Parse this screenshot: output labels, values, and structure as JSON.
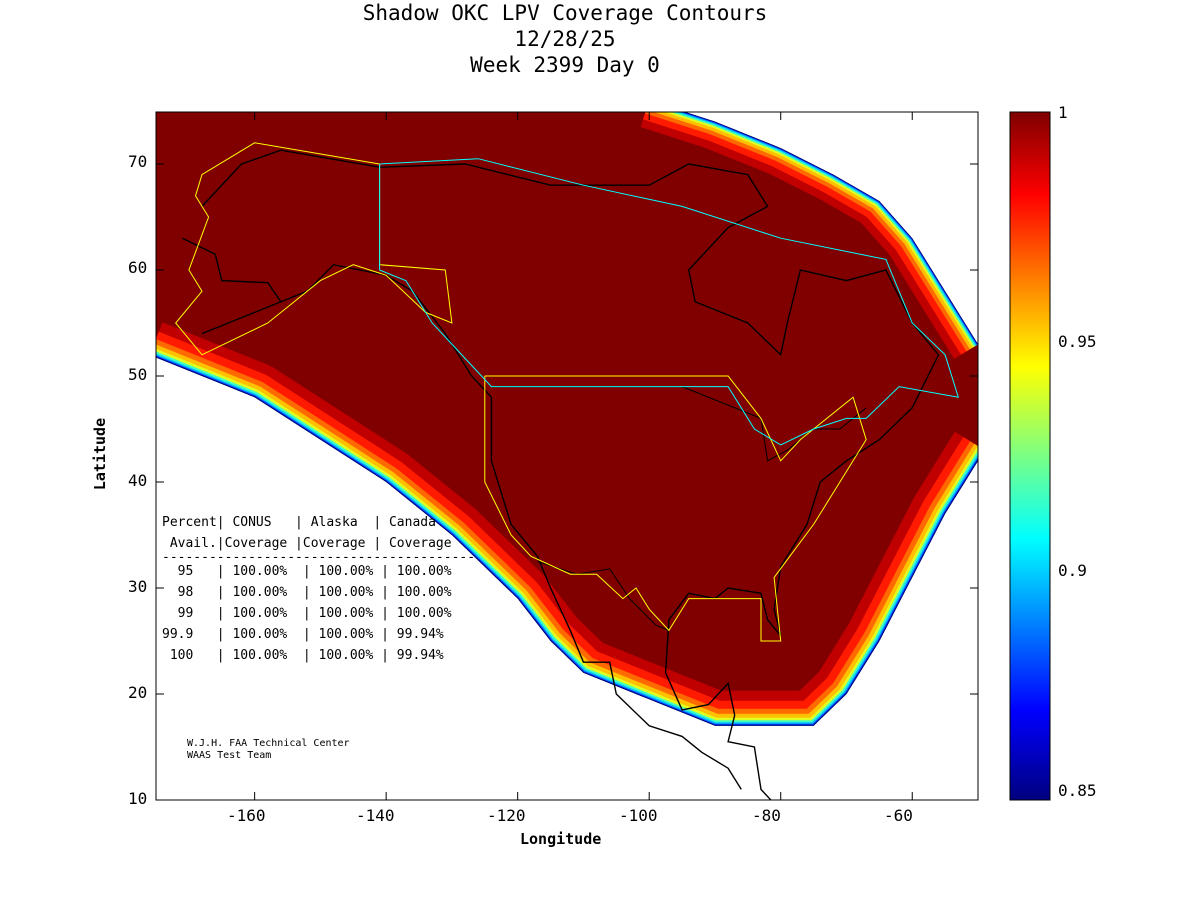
{
  "title": {
    "line1": "Shadow OKC LPV Coverage Contours",
    "line2": "12/28/25",
    "line3": "Week 2399 Day 0"
  },
  "chart_data": {
    "type": "heatmap",
    "title": "Shadow OKC LPV Coverage Contours",
    "xlabel": "Longitude",
    "ylabel": "Latitude",
    "xlim": [
      -175,
      -50
    ],
    "ylim": [
      10,
      75
    ],
    "xticks": [
      "-160",
      "-140",
      "-120",
      "-100",
      "-80",
      "-60"
    ],
    "yticks": [
      "10",
      "20",
      "30",
      "40",
      "50",
      "60",
      "70"
    ],
    "colorbar": {
      "range": [
        0.85,
        1
      ],
      "ticks": [
        "1",
        "0.95",
        "0.9",
        "0.85"
      ],
      "colormap": "jet"
    }
  },
  "table": {
    "header1": "Percent| CONUS   | Alaska  | Canada",
    "header2": " Avail.|Coverage |Coverage | Coverage",
    "rule": "----------------------------------------",
    "rows": [
      "  95   | 100.00%  | 100.00% | 100.00%",
      "  98   | 100.00%  | 100.00% | 100.00%",
      "  99   | 100.00%  | 100.00% | 100.00%",
      "99.9   | 100.00%  | 100.00% | 99.94%",
      " 100   | 100.00%  | 100.00% | 99.94%"
    ]
  },
  "credit": {
    "line1": "W.J.H. FAA Technical Center",
    "line2": "WAAS Test Team"
  }
}
